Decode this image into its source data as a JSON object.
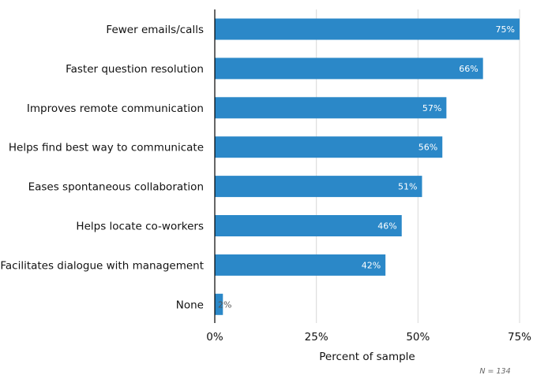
{
  "chart_data": {
    "type": "bar",
    "orientation": "horizontal",
    "title": "",
    "categories": [
      "Fewer emails/calls",
      "Faster question resolution",
      "Improves remote communication",
      "Helps find best way to communicate",
      "Eases spontaneous collaboration",
      "Helps locate co-workers",
      "Facilitates dialogue with management",
      "None"
    ],
    "values": [
      75,
      66,
      57,
      56,
      51,
      46,
      42,
      2
    ],
    "value_labels": [
      "75%",
      "66%",
      "57%",
      "56%",
      "51%",
      "46%",
      "42%",
      "2%"
    ],
    "xlabel": "Percent of sample",
    "ylabel": "",
    "xlim": [
      0,
      75
    ],
    "xticks": [
      0,
      25,
      50,
      75
    ],
    "xtick_labels": [
      "0%",
      "25%",
      "50%",
      "75%"
    ],
    "grid": "vertical",
    "bar_color": "#2b88c8",
    "annotation": "N = 134"
  }
}
